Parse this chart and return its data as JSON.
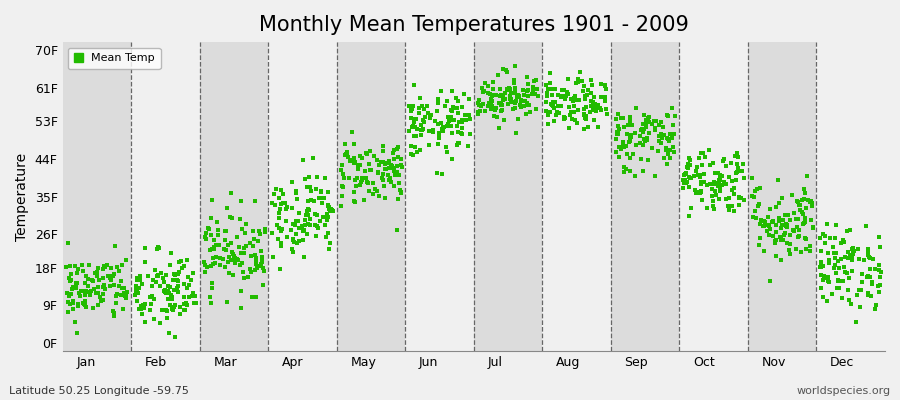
{
  "title": "Monthly Mean Temperatures 1901 - 2009",
  "ylabel": "Temperature",
  "xlabel_months": [
    "Jan",
    "Feb",
    "Mar",
    "Apr",
    "May",
    "Jun",
    "Jul",
    "Aug",
    "Sep",
    "Oct",
    "Nov",
    "Dec"
  ],
  "ytick_labels": [
    "0F",
    "9F",
    "18F",
    "26F",
    "35F",
    "44F",
    "53F",
    "61F",
    "70F"
  ],
  "ytick_values": [
    0,
    9,
    18,
    26,
    35,
    44,
    53,
    61,
    70
  ],
  "ylim": [
    -2,
    72
  ],
  "legend_label": "Mean Temp",
  "dot_color": "#22bb00",
  "dot_size": 5,
  "background_color": "#f0f0f0",
  "plot_bg_color": "#f0f0f0",
  "stripe_color_light": "#f0f0f0",
  "stripe_color_dark": "#dcdcdc",
  "subtitle_left": "Latitude 50.25 Longitude -59.75",
  "subtitle_right": "worldspecies.org",
  "title_fontsize": 15,
  "axis_fontsize": 10,
  "tick_fontsize": 9,
  "monthly_mean_temps_f": [
    13,
    12,
    22,
    31,
    41,
    52,
    59,
    57,
    49,
    39,
    29,
    18
  ],
  "monthly_std_f": [
    4,
    5,
    5,
    5,
    4,
    4,
    3,
    3,
    4,
    4,
    5,
    5
  ],
  "n_years": 109,
  "seed": 42
}
